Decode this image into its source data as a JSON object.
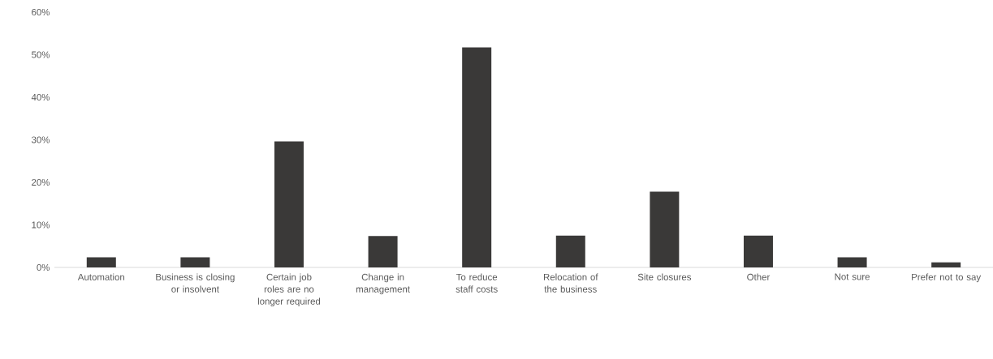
{
  "chart_data": {
    "type": "bar",
    "categories": [
      "Automation",
      "Business is closing or insolvent",
      "Certain job roles are no longer required",
      "Change in management",
      "To reduce staff costs",
      "Relocation of the business",
      "Site closures",
      "Other",
      "Not sure",
      "Prefer not to say"
    ],
    "values": [
      2.4,
      2.4,
      29.6,
      7.4,
      51.7,
      7.5,
      17.8,
      7.5,
      2.4,
      1.2
    ],
    "color": "#3a3938",
    "ylim": [
      0,
      60
    ],
    "yticks": [
      {
        "value": 0,
        "label": "0%"
      },
      {
        "value": 10,
        "label": "10%"
      },
      {
        "value": 20,
        "label": "20%"
      },
      {
        "value": 30,
        "label": "30%"
      },
      {
        "value": 40,
        "label": "40%"
      },
      {
        "value": 50,
        "label": "50%"
      },
      {
        "value": 60,
        "label": "60%"
      }
    ]
  }
}
